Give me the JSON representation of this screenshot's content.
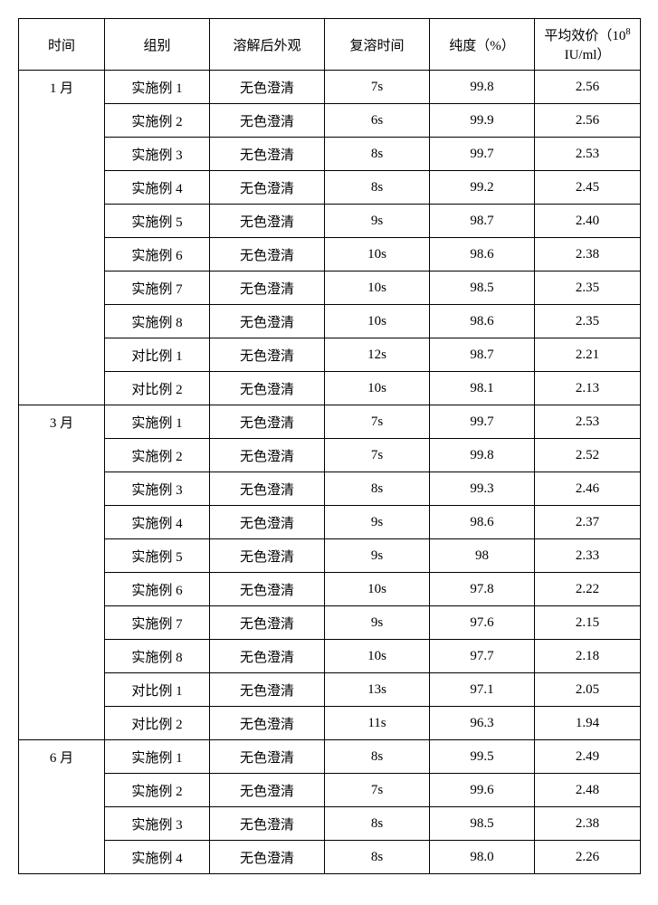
{
  "headers": {
    "time": "时间",
    "group": "组别",
    "appearance": "溶解后外观",
    "redissolve": "复溶时间",
    "purity": "纯度（%）",
    "potency_prefix": "平均效价（10",
    "potency_sup": "8",
    "potency_suffix": " IU/ml）"
  },
  "sections": [
    {
      "time": "1 月",
      "rows": [
        {
          "group": "实施例 1",
          "app": "无色澄清",
          "redis": "7s",
          "pur": "99.8",
          "pot": "2.56"
        },
        {
          "group": "实施例 2",
          "app": "无色澄清",
          "redis": "6s",
          "pur": "99.9",
          "pot": "2.56"
        },
        {
          "group": "实施例 3",
          "app": "无色澄清",
          "redis": "8s",
          "pur": "99.7",
          "pot": "2.53"
        },
        {
          "group": "实施例 4",
          "app": "无色澄清",
          "redis": "8s",
          "pur": "99.2",
          "pot": "2.45"
        },
        {
          "group": "实施例 5",
          "app": "无色澄清",
          "redis": "9s",
          "pur": "98.7",
          "pot": "2.40"
        },
        {
          "group": "实施例 6",
          "app": "无色澄清",
          "redis": "10s",
          "pur": "98.6",
          "pot": "2.38"
        },
        {
          "group": "实施例 7",
          "app": "无色澄清",
          "redis": "10s",
          "pur": "98.5",
          "pot": "2.35"
        },
        {
          "group": "实施例 8",
          "app": "无色澄清",
          "redis": "10s",
          "pur": "98.6",
          "pot": "2.35"
        },
        {
          "group": "对比例 1",
          "app": "无色澄清",
          "redis": "12s",
          "pur": "98.7",
          "pot": "2.21"
        },
        {
          "group": "对比例 2",
          "app": "无色澄清",
          "redis": "10s",
          "pur": "98.1",
          "pot": "2.13"
        }
      ]
    },
    {
      "time": "3 月",
      "rows": [
        {
          "group": "实施例 1",
          "app": "无色澄清",
          "redis": "7s",
          "pur": "99.7",
          "pot": "2.53"
        },
        {
          "group": "实施例 2",
          "app": "无色澄清",
          "redis": "7s",
          "pur": "99.8",
          "pot": "2.52"
        },
        {
          "group": "实施例 3",
          "app": "无色澄清",
          "redis": "8s",
          "pur": "99.3",
          "pot": "2.46"
        },
        {
          "group": "实施例 4",
          "app": "无色澄清",
          "redis": "9s",
          "pur": "98.6",
          "pot": "2.37"
        },
        {
          "group": "实施例 5",
          "app": "无色澄清",
          "redis": "9s",
          "pur": "98",
          "pot": "2.33"
        },
        {
          "group": "实施例 6",
          "app": "无色澄清",
          "redis": "10s",
          "pur": "97.8",
          "pot": "2.22"
        },
        {
          "group": "实施例 7",
          "app": "无色澄清",
          "redis": "9s",
          "pur": "97.6",
          "pot": "2.15"
        },
        {
          "group": "实施例 8",
          "app": "无色澄清",
          "redis": "10s",
          "pur": "97.7",
          "pot": "2.18"
        },
        {
          "group": "对比例 1",
          "app": "无色澄清",
          "redis": "13s",
          "pur": "97.1",
          "pot": "2.05"
        },
        {
          "group": "对比例 2",
          "app": "无色澄清",
          "redis": "11s",
          "pur": "96.3",
          "pot": "1.94"
        }
      ]
    },
    {
      "time": "6 月",
      "rows": [
        {
          "group": "实施例 1",
          "app": "无色澄清",
          "redis": "8s",
          "pur": "99.5",
          "pot": "2.49"
        },
        {
          "group": "实施例 2",
          "app": "无色澄清",
          "redis": "7s",
          "pur": "99.6",
          "pot": "2.48"
        },
        {
          "group": "实施例 3",
          "app": "无色澄清",
          "redis": "8s",
          "pur": "98.5",
          "pot": "2.38"
        },
        {
          "group": "实施例 4",
          "app": "无色澄清",
          "redis": "8s",
          "pur": "98.0",
          "pot": "2.26"
        }
      ]
    }
  ]
}
